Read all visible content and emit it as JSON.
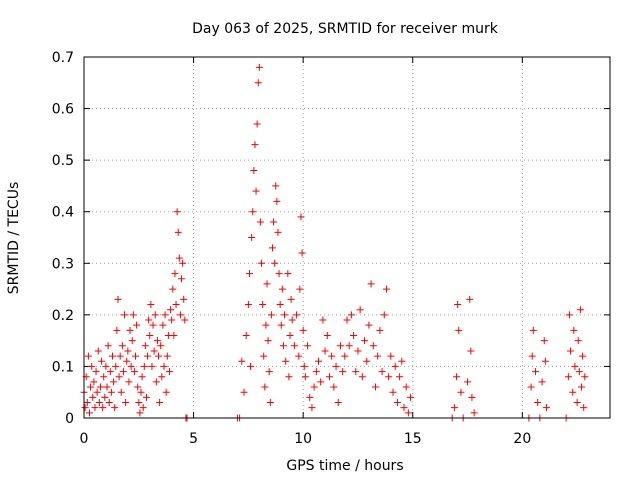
{
  "chart_data": {
    "type": "scatter",
    "title": "Day 063 of 2025, SRMTID for receiver murk",
    "xlabel": "GPS time / hours",
    "ylabel": "SRMTID / TECUs",
    "xlim": [
      0,
      24
    ],
    "ylim": [
      0,
      0.7
    ],
    "x_ticks": [
      0,
      5,
      10,
      15,
      20
    ],
    "y_ticks": [
      0,
      0.1,
      0.2,
      0.3,
      0.4,
      0.5,
      0.6,
      0.7
    ],
    "x_tick_labels": [
      "0",
      "5",
      "10",
      "15",
      "20"
    ],
    "y_tick_labels": [
      "0",
      "0.1",
      "0.2",
      "0.3",
      "0.4",
      "0.5",
      "0.6",
      "0.7"
    ],
    "grid": true,
    "marker": "plus",
    "color": "#ff0000",
    "series": [
      {
        "points": [
          [
            0.0,
            0.05
          ],
          [
            0.05,
            0.02
          ],
          [
            0.1,
            0.08
          ],
          [
            0.15,
            0.03
          ],
          [
            0.2,
            0.12
          ],
          [
            0.25,
            0.01
          ],
          [
            0.3,
            0.06
          ],
          [
            0.35,
            0.1
          ],
          [
            0.4,
            0.04
          ],
          [
            0.45,
            0.07
          ],
          [
            0.5,
            0.02
          ],
          [
            0.55,
            0.09
          ],
          [
            0.6,
            0.05
          ],
          [
            0.65,
            0.13
          ],
          [
            0.7,
            0.03
          ],
          [
            0.75,
            0.06
          ],
          [
            0.8,
            0.11
          ],
          [
            0.85,
            0.02
          ],
          [
            0.9,
            0.08
          ],
          [
            0.95,
            0.04
          ],
          [
            1.0,
            0.1
          ],
          [
            1.05,
            0.06
          ],
          [
            1.1,
            0.14
          ],
          [
            1.15,
            0.03
          ],
          [
            1.2,
            0.09
          ],
          [
            1.25,
            0.05
          ],
          [
            1.3,
            0.12
          ],
          [
            1.35,
            0.07
          ],
          [
            1.4,
            0.02
          ],
          [
            1.45,
            0.1
          ],
          [
            1.5,
            0.17
          ],
          [
            1.55,
            0.23
          ],
          [
            1.6,
            0.08
          ],
          [
            1.65,
            0.12
          ],
          [
            1.7,
            0.05
          ],
          [
            1.75,
            0.14
          ],
          [
            1.8,
            0.09
          ],
          [
            1.85,
            0.2
          ],
          [
            1.9,
            0.03
          ],
          [
            1.95,
            0.11
          ],
          [
            2.0,
            0.13
          ],
          [
            2.05,
            0.07
          ],
          [
            2.1,
            0.17
          ],
          [
            2.15,
            0.1
          ],
          [
            2.2,
            0.15
          ],
          [
            2.25,
            0.2
          ],
          [
            2.3,
            0.09
          ],
          [
            2.35,
            0.12
          ],
          [
            2.4,
            0.18
          ],
          [
            2.45,
            0.06
          ],
          [
            2.5,
            0.03
          ],
          [
            2.55,
            0.01
          ],
          [
            2.6,
            0.05
          ],
          [
            2.65,
            0.08
          ],
          [
            2.7,
            0.02
          ],
          [
            2.75,
            0.1
          ],
          [
            2.8,
            0.14
          ],
          [
            2.85,
            0.04
          ],
          [
            2.9,
            0.12
          ],
          [
            2.95,
            0.19
          ],
          [
            3.0,
            0.16
          ],
          [
            3.05,
            0.22
          ],
          [
            3.1,
            0.1
          ],
          [
            3.15,
            0.18
          ],
          [
            3.2,
            0.13
          ],
          [
            3.25,
            0.2
          ],
          [
            3.3,
            0.07
          ],
          [
            3.35,
            0.15
          ],
          [
            3.4,
            0.12
          ],
          [
            3.45,
            0.03
          ],
          [
            3.5,
            0.14
          ],
          [
            3.55,
            0.08
          ],
          [
            3.6,
            0.18
          ],
          [
            3.65,
            0.1
          ],
          [
            3.7,
            0.2
          ],
          [
            3.75,
            0.05
          ],
          [
            3.8,
            0.12
          ],
          [
            3.85,
            0.16
          ],
          [
            3.9,
            0.09
          ],
          [
            3.95,
            0.21
          ],
          [
            4.0,
            0.19
          ],
          [
            4.05,
            0.25
          ],
          [
            4.1,
            0.16
          ],
          [
            4.15,
            0.28
          ],
          [
            4.2,
            0.22
          ],
          [
            4.25,
            0.4
          ],
          [
            4.3,
            0.36
          ],
          [
            4.35,
            0.31
          ],
          [
            4.4,
            0.2
          ],
          [
            4.45,
            0.27
          ],
          [
            4.5,
            0.3
          ],
          [
            4.55,
            0.23
          ],
          [
            4.6,
            0.19
          ],
          [
            4.65,
            0.0
          ],
          [
            4.7,
            0.0
          ],
          [
            7.0,
            0.0
          ],
          [
            7.1,
            0.0
          ],
          [
            7.2,
            0.11
          ],
          [
            7.3,
            0.05
          ],
          [
            7.4,
            0.16
          ],
          [
            7.5,
            0.22
          ],
          [
            7.55,
            0.28
          ],
          [
            7.6,
            0.1
          ],
          [
            7.65,
            0.35
          ],
          [
            7.7,
            0.4
          ],
          [
            7.75,
            0.48
          ],
          [
            7.8,
            0.53
          ],
          [
            7.85,
            0.44
          ],
          [
            7.9,
            0.57
          ],
          [
            7.95,
            0.65
          ],
          [
            8.0,
            0.68
          ],
          [
            8.05,
            0.38
          ],
          [
            8.1,
            0.3
          ],
          [
            8.15,
            0.22
          ],
          [
            8.2,
            0.12
          ],
          [
            8.25,
            0.06
          ],
          [
            8.3,
            0.18
          ],
          [
            8.35,
            0.26
          ],
          [
            8.4,
            0.15
          ],
          [
            8.45,
            0.09
          ],
          [
            8.5,
            0.03
          ],
          [
            8.55,
            0.2
          ],
          [
            8.6,
            0.33
          ],
          [
            8.65,
            0.38
          ],
          [
            8.7,
            0.3
          ],
          [
            8.75,
            0.45
          ],
          [
            8.8,
            0.42
          ],
          [
            8.85,
            0.36
          ],
          [
            8.9,
            0.28
          ],
          [
            8.95,
            0.22
          ],
          [
            9.0,
            0.18
          ],
          [
            9.05,
            0.25
          ],
          [
            9.1,
            0.14
          ],
          [
            9.15,
            0.2
          ],
          [
            9.2,
            0.11
          ],
          [
            9.3,
            0.28
          ],
          [
            9.35,
            0.08
          ],
          [
            9.4,
            0.16
          ],
          [
            9.45,
            0.23
          ],
          [
            9.5,
            0.19
          ],
          [
            9.6,
            0.14
          ],
          [
            9.7,
            0.2
          ],
          [
            9.8,
            0.12
          ],
          [
            9.85,
            0.25
          ],
          [
            9.9,
            0.39
          ],
          [
            9.95,
            0.32
          ],
          [
            10.0,
            0.17
          ],
          [
            10.05,
            0.1
          ],
          [
            10.1,
            0.08
          ],
          [
            10.2,
            0.14
          ],
          [
            10.3,
            0.04
          ],
          [
            10.4,
            0.02
          ],
          [
            10.5,
            0.06
          ],
          [
            10.6,
            0.09
          ],
          [
            10.7,
            0.11
          ],
          [
            10.8,
            0.07
          ],
          [
            10.9,
            0.19
          ],
          [
            11.0,
            0.13
          ],
          [
            11.1,
            0.16
          ],
          [
            11.2,
            0.08
          ],
          [
            11.3,
            0.12
          ],
          [
            11.4,
            0.06
          ],
          [
            11.5,
            0.1
          ],
          [
            11.6,
            0.03
          ],
          [
            11.7,
            0.14
          ],
          [
            11.8,
            0.09
          ],
          [
            11.9,
            0.12
          ],
          [
            12.0,
            0.19
          ],
          [
            12.1,
            0.14
          ],
          [
            12.2,
            0.2
          ],
          [
            12.3,
            0.16
          ],
          [
            12.4,
            0.09
          ],
          [
            12.5,
            0.13
          ],
          [
            12.6,
            0.21
          ],
          [
            12.7,
            0.08
          ],
          [
            12.8,
            0.15
          ],
          [
            12.9,
            0.11
          ],
          [
            13.0,
            0.18
          ],
          [
            13.1,
            0.26
          ],
          [
            13.2,
            0.14
          ],
          [
            13.3,
            0.06
          ],
          [
            13.4,
            0.12
          ],
          [
            13.5,
            0.17
          ],
          [
            13.6,
            0.09
          ],
          [
            13.7,
            0.2
          ],
          [
            13.8,
            0.25
          ],
          [
            13.9,
            0.08
          ],
          [
            14.0,
            0.12
          ],
          [
            14.1,
            0.05
          ],
          [
            14.2,
            0.1
          ],
          [
            14.3,
            0.03
          ],
          [
            14.4,
            0.08
          ],
          [
            14.5,
            0.11
          ],
          [
            14.6,
            0.02
          ],
          [
            14.7,
            0.06
          ],
          [
            14.8,
            0.01
          ],
          [
            14.9,
            0.04
          ],
          [
            16.8,
            0.0
          ],
          [
            16.9,
            0.02
          ],
          [
            17.0,
            0.08
          ],
          [
            17.05,
            0.22
          ],
          [
            17.1,
            0.17
          ],
          [
            17.2,
            0.05
          ],
          [
            17.3,
            0.0
          ],
          [
            17.5,
            0.07
          ],
          [
            17.6,
            0.23
          ],
          [
            17.65,
            0.13
          ],
          [
            17.7,
            0.04
          ],
          [
            17.8,
            0.01
          ],
          [
            20.3,
            0.0
          ],
          [
            20.4,
            0.06
          ],
          [
            20.45,
            0.12
          ],
          [
            20.5,
            0.17
          ],
          [
            20.6,
            0.09
          ],
          [
            20.7,
            0.03
          ],
          [
            20.8,
            0.0
          ],
          [
            20.9,
            0.07
          ],
          [
            21.0,
            0.15
          ],
          [
            21.05,
            0.11
          ],
          [
            21.1,
            0.02
          ],
          [
            22.0,
            0.0
          ],
          [
            22.1,
            0.08
          ],
          [
            22.15,
            0.2
          ],
          [
            22.2,
            0.13
          ],
          [
            22.3,
            0.05
          ],
          [
            22.35,
            0.17
          ],
          [
            22.4,
            0.1
          ],
          [
            22.5,
            0.03
          ],
          [
            22.55,
            0.15
          ],
          [
            22.6,
            0.09
          ],
          [
            22.65,
            0.21
          ],
          [
            22.7,
            0.06
          ],
          [
            22.75,
            0.12
          ],
          [
            22.8,
            0.02
          ],
          [
            22.85,
            0.08
          ]
        ]
      }
    ]
  }
}
